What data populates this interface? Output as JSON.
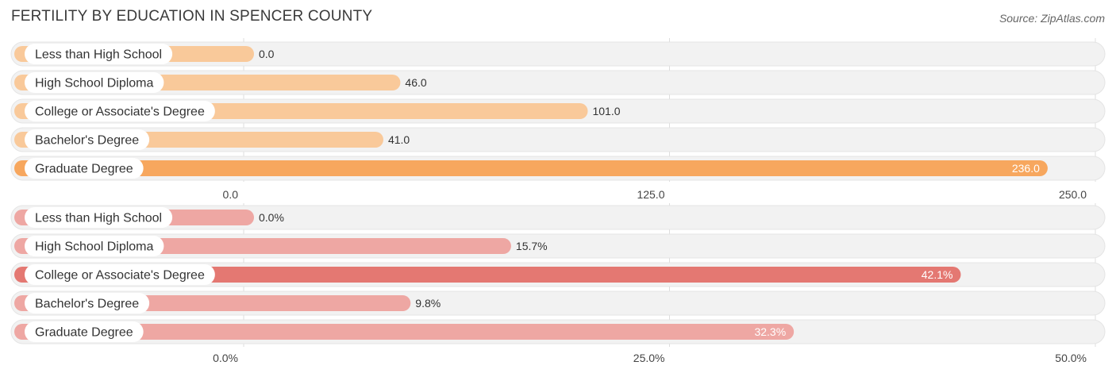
{
  "title": "FERTILITY BY EDUCATION IN SPENCER COUNTY",
  "source": "Source: ZipAtlas.com",
  "chart_data": [
    {
      "type": "bar",
      "orientation": "horizontal",
      "categories": [
        "Less than High School",
        "High School Diploma",
        "College or Associate's Degree",
        "Bachelor's Degree",
        "Graduate Degree"
      ],
      "values": [
        0.0,
        46.0,
        101.0,
        41.0,
        236.0
      ],
      "value_labels": [
        "0.0",
        "46.0",
        "101.0",
        "41.0",
        "236.0"
      ],
      "xlim": [
        0,
        250
      ],
      "ticks": [
        "0.0",
        "125.0",
        "250.0"
      ],
      "grid": true,
      "color": "#f7a75e",
      "color_light": "#f9c99a"
    },
    {
      "type": "bar",
      "orientation": "horizontal",
      "categories": [
        "Less than High School",
        "High School Diploma",
        "College or Associate's Degree",
        "Bachelor's Degree",
        "Graduate Degree"
      ],
      "values": [
        0.0,
        15.7,
        42.1,
        9.8,
        32.3
      ],
      "value_labels": [
        "0.0%",
        "15.7%",
        "42.1%",
        "9.8%",
        "32.3%"
      ],
      "xlim": [
        0,
        50
      ],
      "ticks": [
        "0.0%",
        "25.0%",
        "50.0%"
      ],
      "grid": true,
      "color": "#e47872",
      "color_light": "#eea7a3"
    }
  ]
}
